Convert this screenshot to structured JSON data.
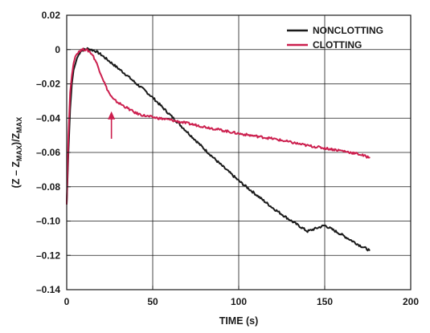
{
  "chart_data": {
    "type": "line",
    "xlabel": "TIME (s)",
    "ylabel": {
      "prefix": "(Z – Z",
      "sub1": "MAX",
      "mid": ")/Z",
      "sub2": "MAX"
    },
    "xlim": [
      0,
      200
    ],
    "ylim": [
      -0.14,
      0.02
    ],
    "x_ticks": [
      0,
      50,
      100,
      150,
      200
    ],
    "y_ticks": [
      0.02,
      0,
      -0.02,
      -0.04,
      -0.06,
      -0.08,
      -0.1,
      -0.12,
      -0.14
    ],
    "x_tick_labels": [
      "0",
      "50",
      "100",
      "150",
      "200"
    ],
    "y_tick_labels": [
      "0.02",
      "0",
      "–0.02",
      "–0.04",
      "–0.06",
      "–0.08",
      "–0.10",
      "–0.12",
      "–0.14"
    ],
    "grid": true,
    "legend_position": "top-right",
    "series": [
      {
        "name": "NONCLOTTING",
        "color": "#1a1a1a",
        "x": [
          0,
          1,
          2,
          3,
          4,
          6,
          8,
          10,
          12,
          14,
          17,
          20,
          25,
          30,
          35,
          40,
          45,
          50,
          55,
          60,
          65,
          70,
          75,
          80,
          90,
          100,
          110,
          120,
          130,
          140,
          150,
          160,
          170,
          176
        ],
        "y": [
          -0.09,
          -0.06,
          -0.035,
          -0.02,
          -0.012,
          -0.005,
          -0.001,
          0,
          0.0005,
          0,
          -0.001,
          -0.003,
          -0.007,
          -0.011,
          -0.015,
          -0.0195,
          -0.0235,
          -0.028,
          -0.033,
          -0.038,
          -0.043,
          -0.048,
          -0.053,
          -0.058,
          -0.0675,
          -0.0765,
          -0.0845,
          -0.0925,
          -0.0995,
          -0.106,
          -0.1025,
          -0.108,
          -0.114,
          -0.117
        ]
      },
      {
        "name": "CLOTTING",
        "color": "#cc1f4e",
        "x": [
          0,
          1,
          2,
          3,
          4,
          5,
          7,
          9,
          11,
          13,
          15,
          17,
          19,
          21,
          23,
          25,
          27,
          30,
          35,
          40,
          45,
          50,
          60,
          70,
          80,
          90,
          100,
          110,
          120,
          130,
          140,
          150,
          160,
          170,
          176
        ],
        "y": [
          -0.09,
          -0.05,
          -0.025,
          -0.015,
          -0.008,
          -0.004,
          -0.001,
          0,
          0,
          -0.001,
          -0.003,
          -0.007,
          -0.012,
          -0.017,
          -0.022,
          -0.026,
          -0.029,
          -0.031,
          -0.034,
          -0.037,
          -0.0385,
          -0.0395,
          -0.041,
          -0.043,
          -0.045,
          -0.047,
          -0.049,
          -0.0505,
          -0.052,
          -0.054,
          -0.056,
          -0.0575,
          -0.059,
          -0.061,
          -0.063
        ]
      }
    ],
    "annotations": [
      {
        "type": "arrow",
        "x": 26,
        "y_from": -0.052,
        "y_to": -0.036,
        "color": "#cc1f4e"
      }
    ]
  }
}
